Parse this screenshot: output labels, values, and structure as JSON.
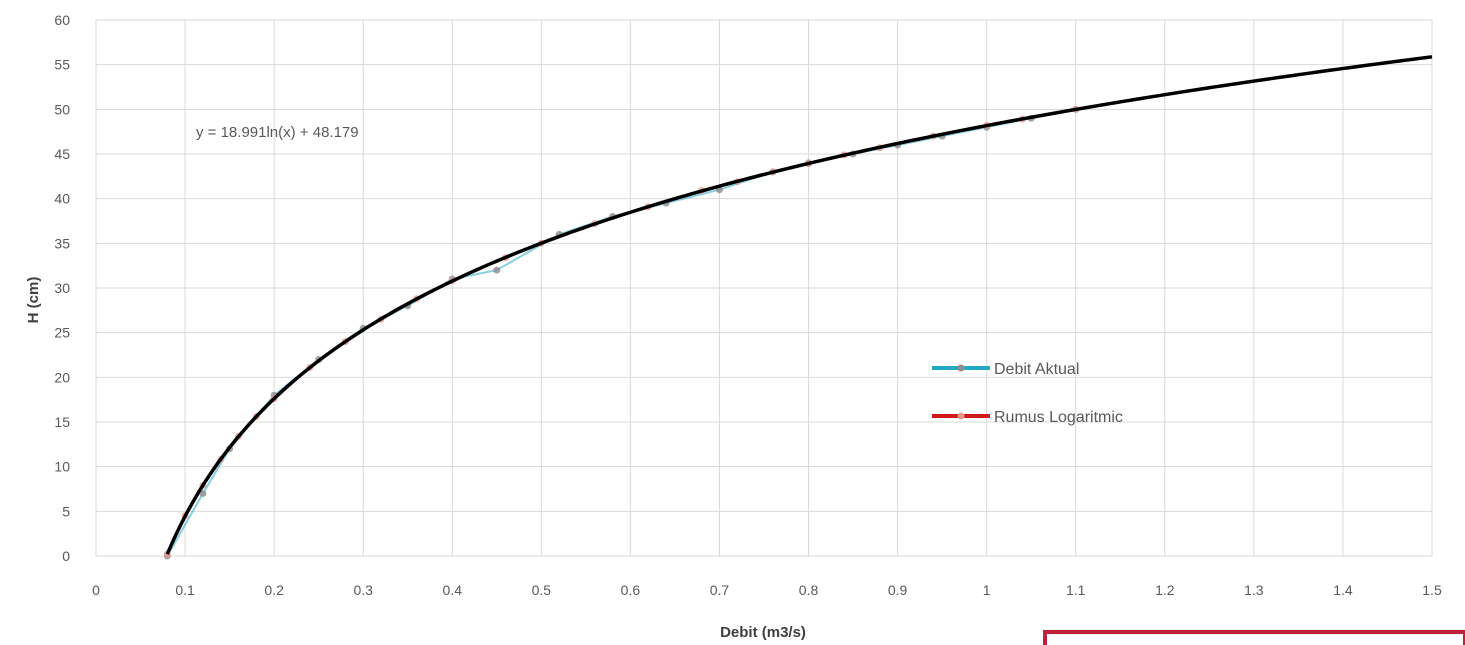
{
  "chart_data": {
    "type": "scatter",
    "title": "",
    "xlabel": "Debit (m3/s)",
    "ylabel": "H (cm)",
    "xlim": [
      0,
      1.5
    ],
    "ylim": [
      0,
      60
    ],
    "x_ticks": [
      "0",
      "0.1",
      "0.2",
      "0.3",
      "0.4",
      "0.5",
      "0.6",
      "0.7",
      "0.8",
      "0.9",
      "1",
      "1.1",
      "1.2",
      "1.3",
      "1.4",
      "1.5"
    ],
    "y_ticks": [
      "0",
      "5",
      "10",
      "15",
      "20",
      "25",
      "30",
      "35",
      "40",
      "45",
      "50",
      "55",
      "60"
    ],
    "grid": true,
    "legend_position": "right-middle",
    "trendline": {
      "label": "y = 18.991ln(x) + 48.179",
      "a": 18.991,
      "b": 48.179,
      "x_start": 0.08,
      "x_end": 1.5,
      "color": "#000000"
    },
    "series": [
      {
        "name": "Debit Aktual",
        "color": "#23a9c8",
        "marker_color": "#8c8c8c",
        "points": [
          [
            0.08,
            0
          ],
          [
            0.12,
            7
          ],
          [
            0.15,
            12
          ],
          [
            0.2,
            18
          ],
          [
            0.25,
            22
          ],
          [
            0.3,
            25.5
          ],
          [
            0.35,
            28
          ],
          [
            0.4,
            31
          ],
          [
            0.45,
            32
          ],
          [
            0.52,
            36
          ],
          [
            0.58,
            38
          ],
          [
            0.64,
            39.5
          ],
          [
            0.7,
            41
          ],
          [
            0.76,
            43
          ],
          [
            0.8,
            44
          ],
          [
            0.85,
            45
          ],
          [
            0.9,
            46
          ],
          [
            0.95,
            47
          ],
          [
            1.0,
            48
          ],
          [
            1.05,
            49
          ],
          [
            1.1,
            50
          ]
        ]
      },
      {
        "name": "Rumus Logaritmic",
        "color": "#d01a1a",
        "marker_color": "#e89a90",
        "points": [
          [
            0.08,
            0.2
          ],
          [
            0.1,
            4.5
          ],
          [
            0.12,
            7.9
          ],
          [
            0.14,
            10.8
          ],
          [
            0.16,
            13.4
          ],
          [
            0.18,
            15.6
          ],
          [
            0.2,
            17.6
          ],
          [
            0.24,
            21.1
          ],
          [
            0.28,
            24.0
          ],
          [
            0.32,
            26.5
          ],
          [
            0.36,
            28.8
          ],
          [
            0.4,
            30.8
          ],
          [
            0.46,
            33.4
          ],
          [
            0.5,
            35.0
          ],
          [
            0.56,
            37.2
          ],
          [
            0.62,
            39.1
          ],
          [
            0.68,
            40.9
          ],
          [
            0.72,
            41.9
          ],
          [
            0.76,
            43.0
          ],
          [
            0.8,
            43.9
          ],
          [
            0.84,
            44.9
          ],
          [
            0.88,
            45.7
          ],
          [
            0.94,
            47.0
          ],
          [
            1.0,
            48.2
          ],
          [
            1.04,
            48.9
          ],
          [
            1.1,
            50.0
          ]
        ]
      }
    ]
  }
}
